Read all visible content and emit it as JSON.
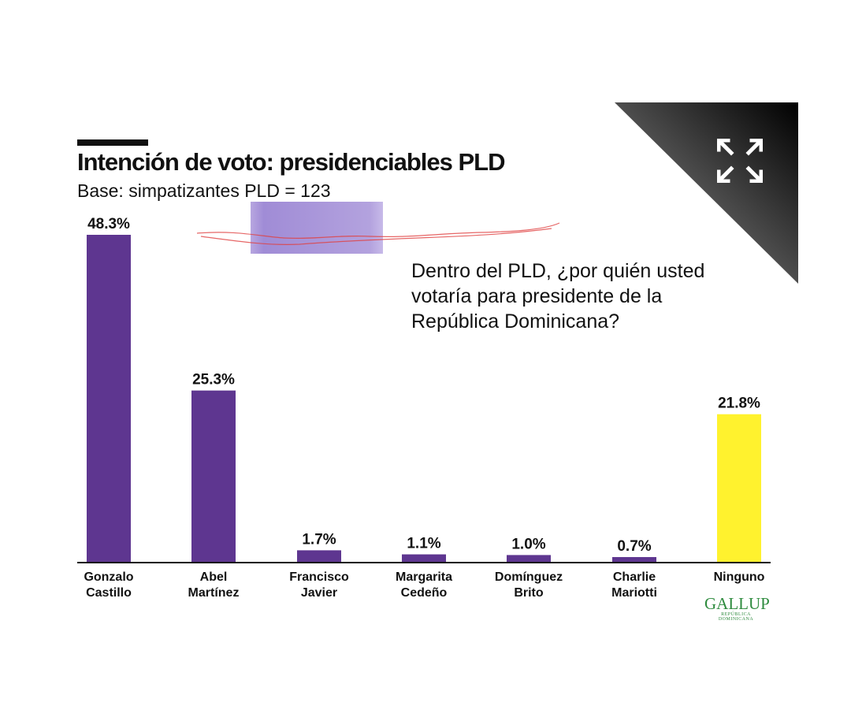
{
  "chart_data": {
    "type": "bar",
    "title": "Intención de voto: presidenciables PLD",
    "subtitle": "Base: simpatizantes PLD = 123",
    "annotation": "Dentro del PLD, ¿por quién usted votaría para presidente de la República Dominicana?",
    "categories": [
      [
        "Gonzalo",
        "Castillo"
      ],
      [
        "Abel",
        "Martínez"
      ],
      [
        "Francisco",
        "Javier"
      ],
      [
        "Margarita",
        "Cedeño"
      ],
      [
        "Domínguez",
        "Brito"
      ],
      [
        "Charlie",
        "Mariotti"
      ],
      [
        "Ninguno"
      ]
    ],
    "values": [
      48.3,
      25.3,
      1.7,
      1.1,
      1.0,
      0.7,
      21.8
    ],
    "value_labels": [
      "48.3%",
      "25.3%",
      "1.7%",
      "1.1%",
      "1.0%",
      "0.7%",
      "21.8%"
    ],
    "colors": [
      "#5e3690",
      "#5e3690",
      "#5e3690",
      "#5e3690",
      "#5e3690",
      "#5e3690",
      "#fff22e"
    ],
    "ylim": [
      0,
      48.3
    ],
    "grid": false,
    "legend": "none"
  },
  "branding": {
    "logo": "GALLUP",
    "logo_sub": "REPÚBLICA DOMINICANA"
  },
  "icons": {
    "expand": "expand-icon"
  }
}
